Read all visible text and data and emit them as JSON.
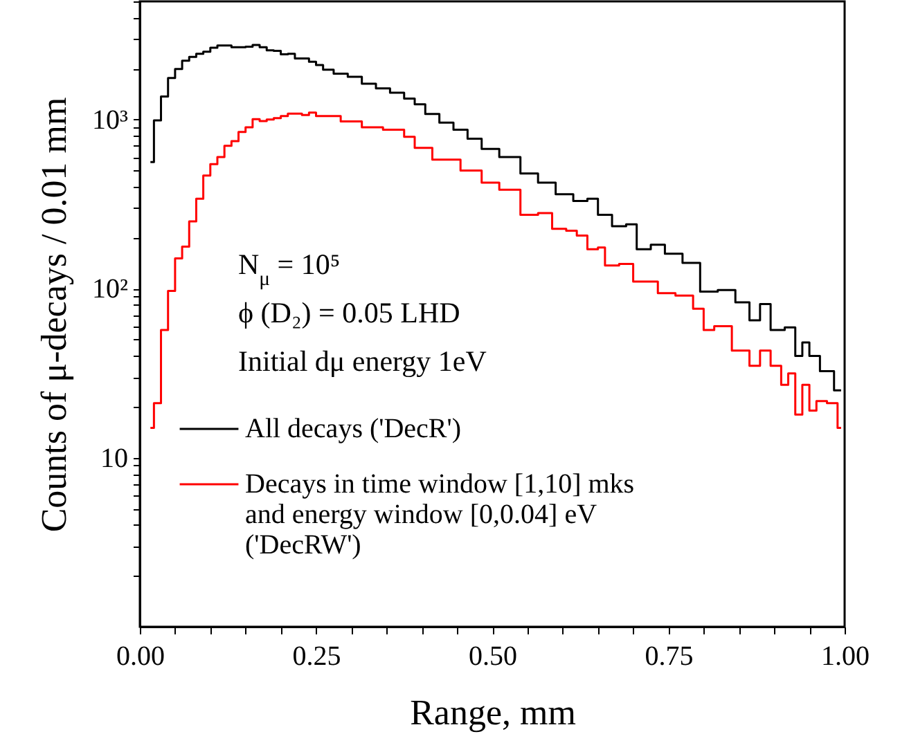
{
  "chart_data": {
    "type": "step",
    "xlabel": "Range, mm",
    "ylabel": "Counts of μ-decays / 0.01 mm",
    "annotations": [
      "N$_{μ}$ = 10⁵",
      "ϕ (D₂) = 0.05 LHD",
      "Initial dμ energy 1eV"
    ],
    "xlim": [
      0,
      1
    ],
    "ylim": [
      1,
      5000
    ],
    "log": "y",
    "grid": false,
    "legend": "bottom left",
    "marker": "none",
    "line_style": "solid",
    "xticks": [
      {
        "value": 0,
        "label": "0.00"
      },
      {
        "value": 0.05,
        "label": null
      },
      {
        "value": 0.1,
        "label": null
      },
      {
        "value": 0.15,
        "label": null
      },
      {
        "value": 0.2,
        "label": null
      },
      0.25,
      {
        "value": 0.3,
        "label": null
      },
      {
        "value": 0.35,
        "label": null
      },
      {
        "value": 0.4,
        "label": null
      },
      {
        "value": 0.45,
        "label": null
      },
      {
        "value": 0.5,
        "label": "0.50"
      },
      {
        "value": 0.55,
        "label": null
      },
      {
        "value": 0.6,
        "label": null
      },
      {
        "value": 0.65,
        "label": null
      },
      {
        "value": 0.7,
        "label": null
      },
      0.75,
      {
        "value": 0.8,
        "label": null
      },
      {
        "value": 0.85,
        "label": null
      },
      {
        "value": 0.9,
        "label": null
      },
      {
        "value": 0.95,
        "label": null
      },
      {
        "value": 1,
        "label": "1.00"
      }
    ],
    "yticks": [
      {
        "value": 2,
        "label": null
      },
      {
        "value": 3,
        "label": null
      },
      {
        "value": 4,
        "label": null
      },
      {
        "value": 5,
        "label": null
      },
      {
        "value": 6,
        "label": null
      },
      {
        "value": 7,
        "label": null
      },
      {
        "value": 8,
        "label": null
      },
      {
        "value": 9,
        "label": null
      },
      10,
      {
        "value": 20,
        "label": null
      },
      {
        "value": 30,
        "label": null
      },
      {
        "value": 40,
        "label": null
      },
      {
        "value": 50,
        "label": null
      },
      {
        "value": 60,
        "label": null
      },
      {
        "value": 70,
        "label": null
      },
      {
        "value": 80,
        "label": null
      },
      {
        "value": 90,
        "label": null
      },
      {
        "value": 100,
        "label": "10²"
      },
      {
        "value": 200,
        "label": null
      },
      {
        "value": 300,
        "label": null
      },
      {
        "value": 400,
        "label": null
      },
      {
        "value": 500,
        "label": null
      },
      {
        "value": 600,
        "label": null
      },
      {
        "value": 700,
        "label": null
      },
      {
        "value": 800,
        "label": null
      },
      {
        "value": 900,
        "label": null
      },
      {
        "value": 1000,
        "label": "10³"
      },
      {
        "value": 2000,
        "label": null
      },
      {
        "value": 3000,
        "label": null
      },
      {
        "value": 4000,
        "label": null
      },
      {
        "value": 5000,
        "label": null
      }
    ],
    "series": [
      {
        "name": "All decays  ('DecR')",
        "color": "#000000",
        "x": [
          0.015,
          0.025,
          0.035,
          0.045,
          0.055,
          0.065,
          0.075,
          0.085,
          0.095,
          0.105,
          0.115,
          0.125,
          0.135,
          0.145,
          0.155,
          0.165,
          0.175,
          0.185,
          0.195,
          0.205,
          0.215,
          0.225,
          0.235,
          0.245,
          0.255,
          0.265,
          0.285,
          0.305,
          0.325,
          0.345,
          0.365,
          0.385,
          0.395,
          0.415,
          0.435,
          0.455,
          0.475,
          0.495,
          0.525,
          0.555,
          0.575,
          0.605,
          0.625,
          0.645,
          0.655,
          0.685,
          0.695,
          0.715,
          0.735,
          0.755,
          0.785,
          0.805,
          0.835,
          0.855,
          0.875,
          0.885,
          0.905,
          0.925,
          0.935,
          0.945,
          0.955,
          0.975,
          0.995
        ],
        "values": [
          560,
          990,
          1370,
          1760,
          1990,
          2230,
          2350,
          2450,
          2520,
          2660,
          2740,
          2740,
          2680,
          2680,
          2700,
          2760,
          2680,
          2570,
          2550,
          2430,
          2450,
          2300,
          2300,
          2200,
          2100,
          1970,
          1870,
          1790,
          1630,
          1530,
          1440,
          1330,
          1230,
          1080,
          960,
          870,
          770,
          670,
          600,
          480,
          424,
          362,
          330,
          340,
          273,
          234,
          240,
          171,
          182,
          161,
          142,
          96,
          98,
          83,
          65,
          81,
          57,
          59,
          40,
          48,
          40,
          32.5,
          25
        ]
      },
      {
        "name": "Decays in time window [1,10] mks and energy window [0,0.04] eV ('DecRW')",
        "color": "#ff0000",
        "x": [
          0.015,
          0.025,
          0.035,
          0.045,
          0.055,
          0.065,
          0.075,
          0.085,
          0.095,
          0.105,
          0.115,
          0.125,
          0.135,
          0.145,
          0.155,
          0.165,
          0.175,
          0.185,
          0.195,
          0.205,
          0.215,
          0.225,
          0.235,
          0.245,
          0.255,
          0.265,
          0.305,
          0.325,
          0.365,
          0.385,
          0.395,
          0.435,
          0.475,
          0.495,
          0.525,
          0.555,
          0.575,
          0.595,
          0.615,
          0.625,
          0.645,
          0.655,
          0.665,
          0.695,
          0.705,
          0.725,
          0.745,
          0.775,
          0.795,
          0.805,
          0.825,
          0.855,
          0.875,
          0.885,
          0.905,
          0.915,
          0.925,
          0.935,
          0.945,
          0.955,
          0.965,
          0.985,
          0.995
        ],
        "values": [
          15,
          21,
          57,
          97,
          151,
          177,
          250,
          340,
          466,
          545,
          600,
          700,
          745,
          845,
          900,
          1006,
          980,
          1000,
          1020,
          1050,
          1085,
          1085,
          1065,
          1100,
          1050,
          1050,
          975,
          900,
          870,
          790,
          680,
          580,
          500,
          424,
          385,
          273,
          280,
          226,
          220,
          206,
          171,
          175,
          137,
          140,
          110,
          110,
          94,
          91,
          76,
          57,
          60,
          43,
          35,
          43,
          35,
          27,
          31.5,
          18,
          27,
          19,
          21.6,
          21,
          15
        ]
      }
    ]
  }
}
